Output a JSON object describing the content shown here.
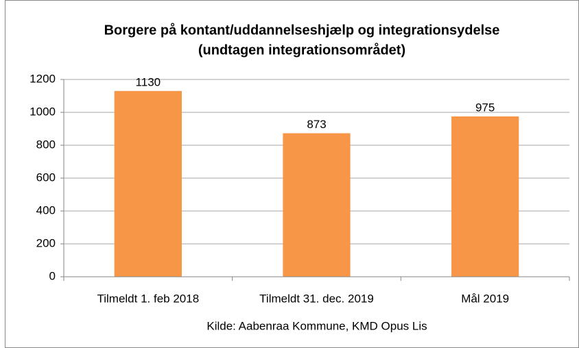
{
  "chart_data": {
    "type": "bar",
    "title": [
      "Borgere på kontant/uddannelseshjælp og integrationsydelse",
      "(undtagen integrationsområdet)"
    ],
    "categories": [
      "Tilmeldt 1. feb 2018",
      "Tilmeldt 31. dec. 2019",
      "Mål 2019"
    ],
    "values": [
      1130,
      873,
      975
    ],
    "color": "#f79646",
    "ylim": [
      0,
      1200
    ],
    "yticks": [
      0,
      200,
      400,
      600,
      800,
      1000,
      1200
    ],
    "grid": true,
    "source": "Kilde: Aabenraa Kommune, KMD Opus Lis"
  }
}
